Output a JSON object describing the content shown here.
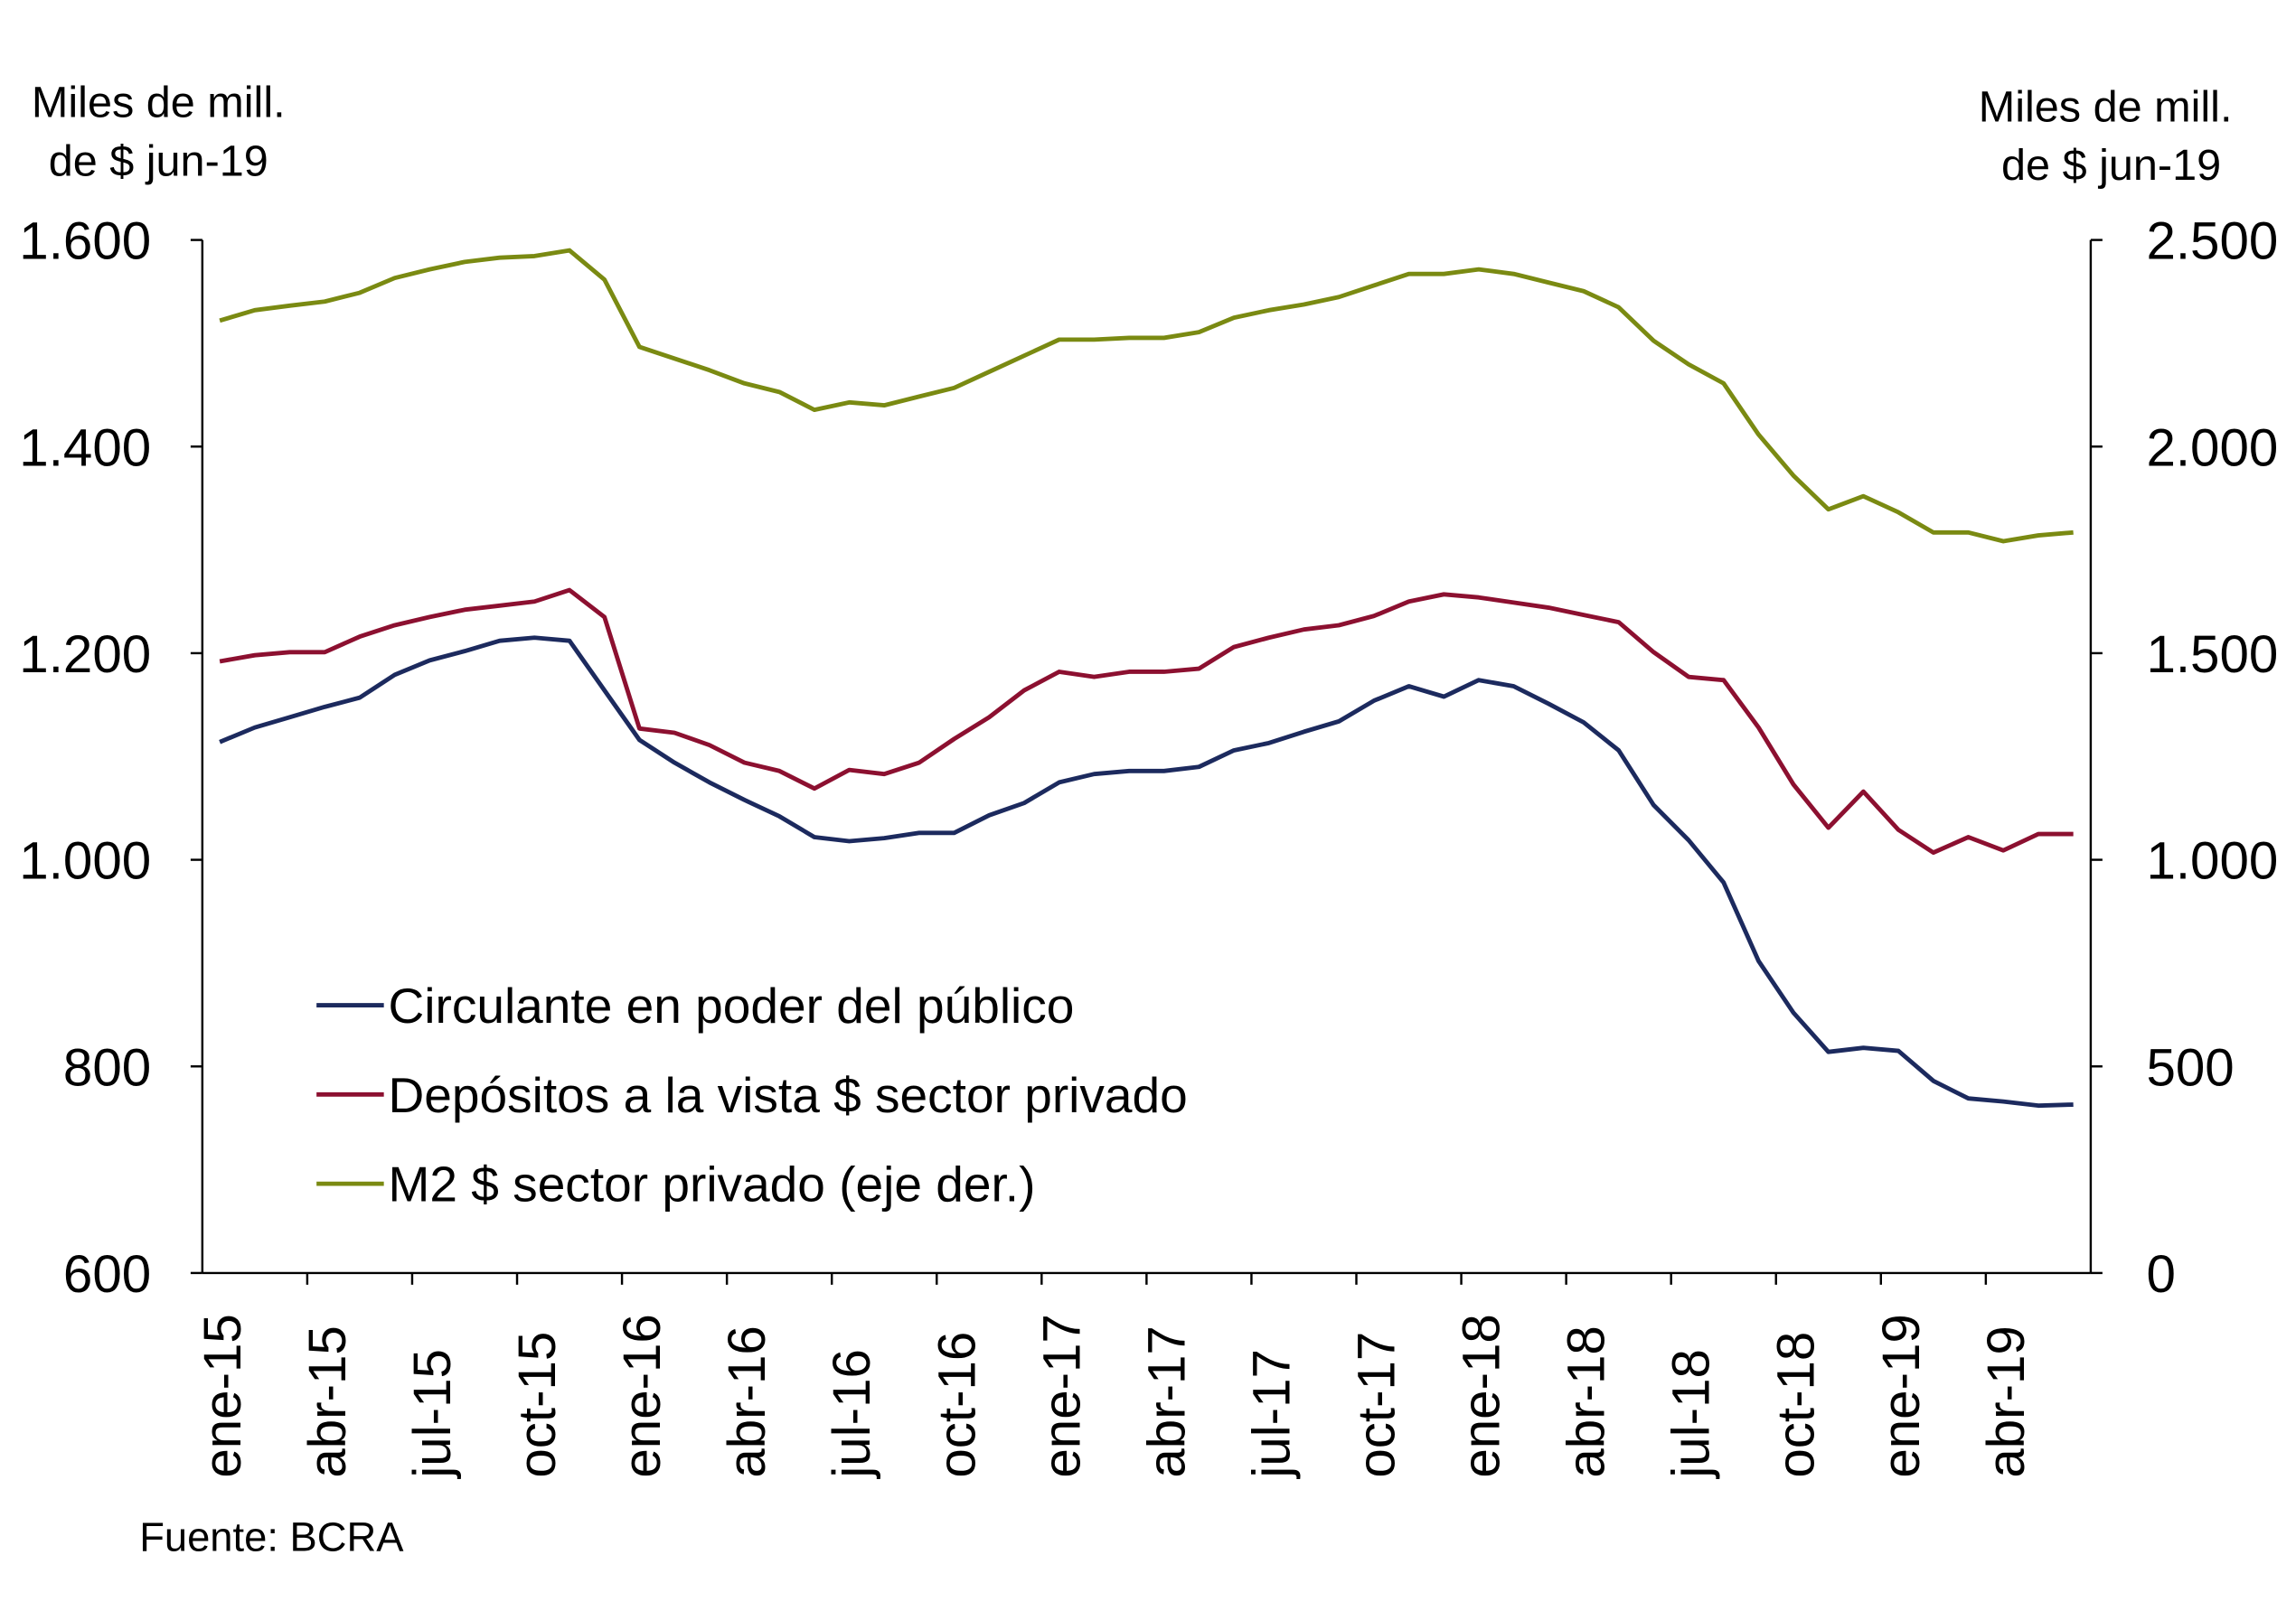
{
  "chart_data": {
    "type": "line",
    "left_axis": {
      "title_line1": "Miles de mill.",
      "title_line2": "de $ jun-19",
      "ylim": [
        600,
        1600
      ],
      "ticks": [
        "600",
        "800",
        "1.000",
        "1.200",
        "1.400",
        "1.600"
      ],
      "tick_values": [
        600,
        800,
        1000,
        1200,
        1400,
        1600
      ]
    },
    "right_axis": {
      "title_line1": "Miles de mill.",
      "title_line2": "de $ jun-19",
      "ylim": [
        0,
        2500
      ],
      "ticks": [
        "0",
        "500",
        "1.000",
        "1.500",
        "2.000",
        "2.500"
      ],
      "tick_values": [
        0,
        500,
        1000,
        1500,
        2000,
        2500
      ]
    },
    "x": [
      "ene-15",
      "feb-15",
      "mar-15",
      "abr-15",
      "may-15",
      "jun-15",
      "jul-15",
      "ago-15",
      "sep-15",
      "oct-15",
      "nov-15",
      "dic-15",
      "ene-16",
      "feb-16",
      "mar-16",
      "abr-16",
      "may-16",
      "jun-16",
      "jul-16",
      "ago-16",
      "sep-16",
      "oct-16",
      "nov-16",
      "dic-16",
      "ene-17",
      "feb-17",
      "mar-17",
      "abr-17",
      "may-17",
      "jun-17",
      "jul-17",
      "ago-17",
      "sep-17",
      "oct-17",
      "nov-17",
      "dic-17",
      "ene-18",
      "feb-18",
      "mar-18",
      "abr-18",
      "may-18",
      "jun-18",
      "jul-18",
      "ago-18",
      "sep-18",
      "oct-18",
      "nov-18",
      "dic-18",
      "ene-19",
      "feb-19",
      "mar-19",
      "abr-19",
      "may-19",
      "jun-19"
    ],
    "x_tick_labels": [
      "ene-15",
      "abr-15",
      "jul-15",
      "oct-15",
      "ene-16",
      "abr-16",
      "jul-16",
      "oct-16",
      "ene-17",
      "abr-17",
      "jul-17",
      "oct-17",
      "ene-18",
      "abr-18",
      "jul-18",
      "oct-18",
      "ene-19",
      "abr-19"
    ],
    "series": [
      {
        "name": "Circulante en poder del público",
        "axis": "left",
        "color": "#1c2a5e",
        "values": [
          1114,
          1128,
          1138,
          1148,
          1157,
          1179,
          1193,
          1202,
          1212,
          1215,
          1212,
          1164,
          1116,
          1094,
          1075,
          1058,
          1042,
          1022,
          1018,
          1021,
          1026,
          1026,
          1043,
          1055,
          1075,
          1083,
          1086,
          1086,
          1090,
          1106,
          1113,
          1124,
          1134,
          1154,
          1168,
          1158,
          1174,
          1168,
          1151,
          1133,
          1106,
          1053,
          1019,
          978,
          902,
          852,
          814,
          818,
          815,
          786,
          769,
          766,
          762,
          763
        ]
      },
      {
        "name": "Depósitos a la vista $ sector privado",
        "axis": "left",
        "color": "#8c1030",
        "values": [
          1192,
          1198,
          1201,
          1201,
          1216,
          1227,
          1235,
          1242,
          1246,
          1250,
          1261,
          1235,
          1127,
          1123,
          1111,
          1094,
          1086,
          1069,
          1087,
          1083,
          1094,
          1117,
          1138,
          1164,
          1182,
          1177,
          1182,
          1182,
          1185,
          1206,
          1215,
          1223,
          1227,
          1236,
          1250,
          1257,
          1254,
          1249,
          1244,
          1237,
          1230,
          1201,
          1177,
          1174,
          1128,
          1073,
          1031,
          1066,
          1029,
          1007,
          1022,
          1009,
          1025,
          1025
        ]
      },
      {
        "name": "M2 $ sector privado (eje der.)",
        "axis": "right",
        "color": "#7a8a12",
        "values": [
          2305,
          2330,
          2341,
          2351,
          2372,
          2408,
          2429,
          2447,
          2457,
          2461,
          2475,
          2404,
          2241,
          2213,
          2185,
          2153,
          2132,
          2089,
          2107,
          2100,
          2121,
          2142,
          2181,
          2220,
          2259,
          2259,
          2263,
          2263,
          2277,
          2312,
          2330,
          2344,
          2362,
          2390,
          2418,
          2418,
          2429,
          2418,
          2397,
          2376,
          2337,
          2256,
          2199,
          2153,
          2029,
          1930,
          1848,
          1880,
          1841,
          1792,
          1792,
          1771,
          1785,
          1792
        ]
      }
    ],
    "legend_position": "lower-left",
    "grid": false,
    "source": "Fuente: BCRA"
  }
}
